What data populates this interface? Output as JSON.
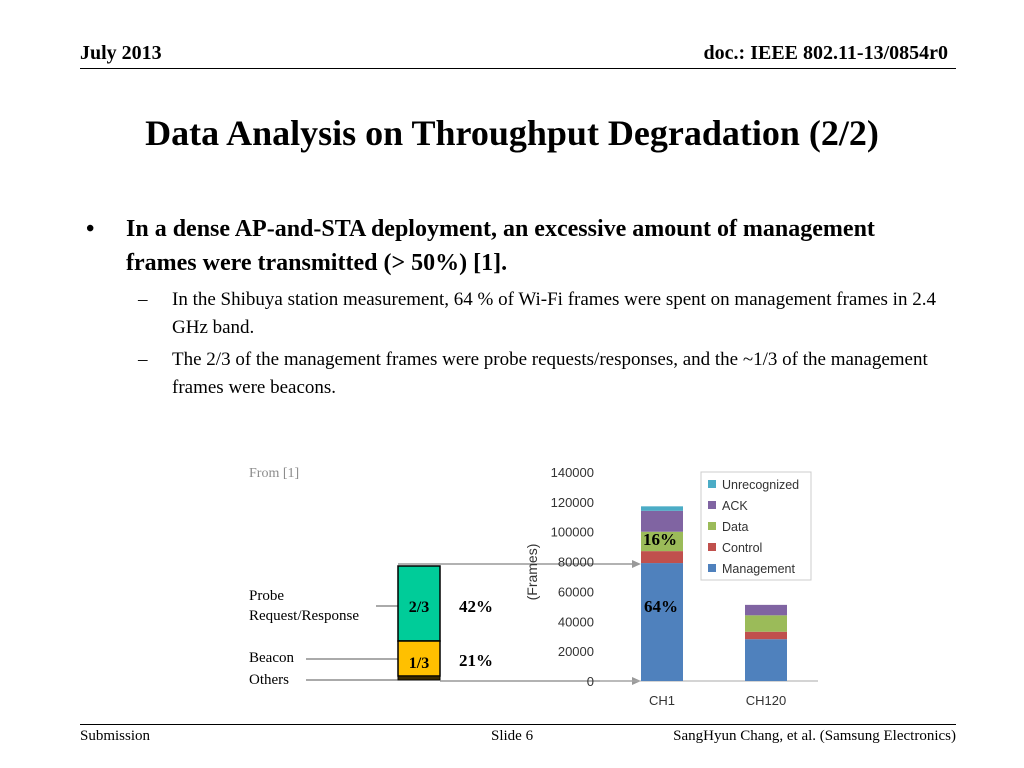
{
  "header": {
    "date": "July 2013",
    "doc": "doc.: IEEE 802.11-13/0854r0"
  },
  "title": "Data Analysis on Throughput Degradation (2/2)",
  "bullet": {
    "marker": "•",
    "text": "In a dense AP-and-STA deployment, an excessive amount of management frames were transmitted (> 50%) [1].",
    "subs": [
      {
        "marker": "–",
        "text": "In the Shibuya station measurement, 64 % of Wi-Fi frames were spent on management frames in 2.4 GHz band."
      },
      {
        "marker": "–",
        "text": "The 2/3 of the management frames were probe requests/responses, and the ~1/3 of the management frames were beacons."
      }
    ]
  },
  "figure": {
    "source": "From [1]",
    "labels": {
      "probe": "Probe\nRequest/Response",
      "beacon": "Beacon",
      "others": "Others"
    },
    "breakdown": {
      "probe_frac": "2/3",
      "beacon_frac": "1/3",
      "probe_pct": "42%",
      "beacon_pct": "21%"
    },
    "annot": {
      "upper_pct": "16%",
      "mgmt_pct": "64%"
    }
  },
  "chart_data": {
    "type": "bar",
    "stacked": true,
    "categories": [
      "CH1",
      "CH120"
    ],
    "ylabel": "(Frames)",
    "ylim": [
      0,
      140000
    ],
    "yticks": [
      0,
      20000,
      40000,
      60000,
      80000,
      100000,
      120000,
      140000
    ],
    "legend_position": "top-right",
    "series": [
      {
        "name": "Management",
        "color": "#4F81BD",
        "values": [
          79000,
          28000
        ]
      },
      {
        "name": "Control",
        "color": "#C0504D",
        "values": [
          8000,
          5000
        ]
      },
      {
        "name": "Data",
        "color": "#9BBB59",
        "values": [
          13000,
          11000
        ]
      },
      {
        "name": "ACK",
        "color": "#8064A2",
        "values": [
          14000,
          7000
        ]
      },
      {
        "name": "Unrecognized",
        "color": "#4BACC6",
        "values": [
          3000,
          0
        ]
      }
    ]
  },
  "footer": {
    "left": "Submission",
    "center": "Slide 6",
    "right": "SangHyun Chang, et al. (Samsung Electronics)"
  }
}
